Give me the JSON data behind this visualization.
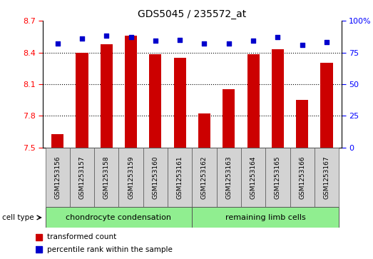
{
  "title": "GDS5045 / 235572_at",
  "samples": [
    "GSM1253156",
    "GSM1253157",
    "GSM1253158",
    "GSM1253159",
    "GSM1253160",
    "GSM1253161",
    "GSM1253162",
    "GSM1253163",
    "GSM1253164",
    "GSM1253165",
    "GSM1253166",
    "GSM1253167"
  ],
  "transformed_counts": [
    7.63,
    8.4,
    8.48,
    8.56,
    8.38,
    8.35,
    7.82,
    8.05,
    8.38,
    8.43,
    7.95,
    8.3
  ],
  "percentile_ranks": [
    82,
    86,
    88,
    87,
    84,
    85,
    82,
    82,
    84,
    87,
    81,
    83
  ],
  "ylim_left": [
    7.5,
    8.7
  ],
  "ylim_right": [
    0,
    100
  ],
  "yticks_left": [
    7.5,
    7.8,
    8.1,
    8.4,
    8.7
  ],
  "yticks_right": [
    0,
    25,
    50,
    75,
    100
  ],
  "ytick_labels_left": [
    "7.5",
    "7.8",
    "8.1",
    "8.4",
    "8.7"
  ],
  "ytick_labels_right": [
    "0",
    "25",
    "50",
    "75",
    "100%"
  ],
  "grid_values": [
    7.8,
    8.1,
    8.4
  ],
  "bar_color": "#cc0000",
  "dot_color": "#0000cc",
  "bar_bottom": 7.5,
  "groups": [
    {
      "label": "chondrocyte condensation",
      "start": 0,
      "end": 5,
      "color": "#90ee90"
    },
    {
      "label": "remaining limb cells",
      "start": 6,
      "end": 11,
      "color": "#90ee90"
    }
  ],
  "cell_type_label": "cell type",
  "legend_items": [
    {
      "color": "#cc0000",
      "label": "transformed count"
    },
    {
      "color": "#0000cc",
      "label": "percentile rank within the sample"
    }
  ],
  "bg_color": "#d3d3d3",
  "plot_bg": "#ffffff",
  "fig_width": 5.23,
  "fig_height": 3.63,
  "dpi": 100
}
